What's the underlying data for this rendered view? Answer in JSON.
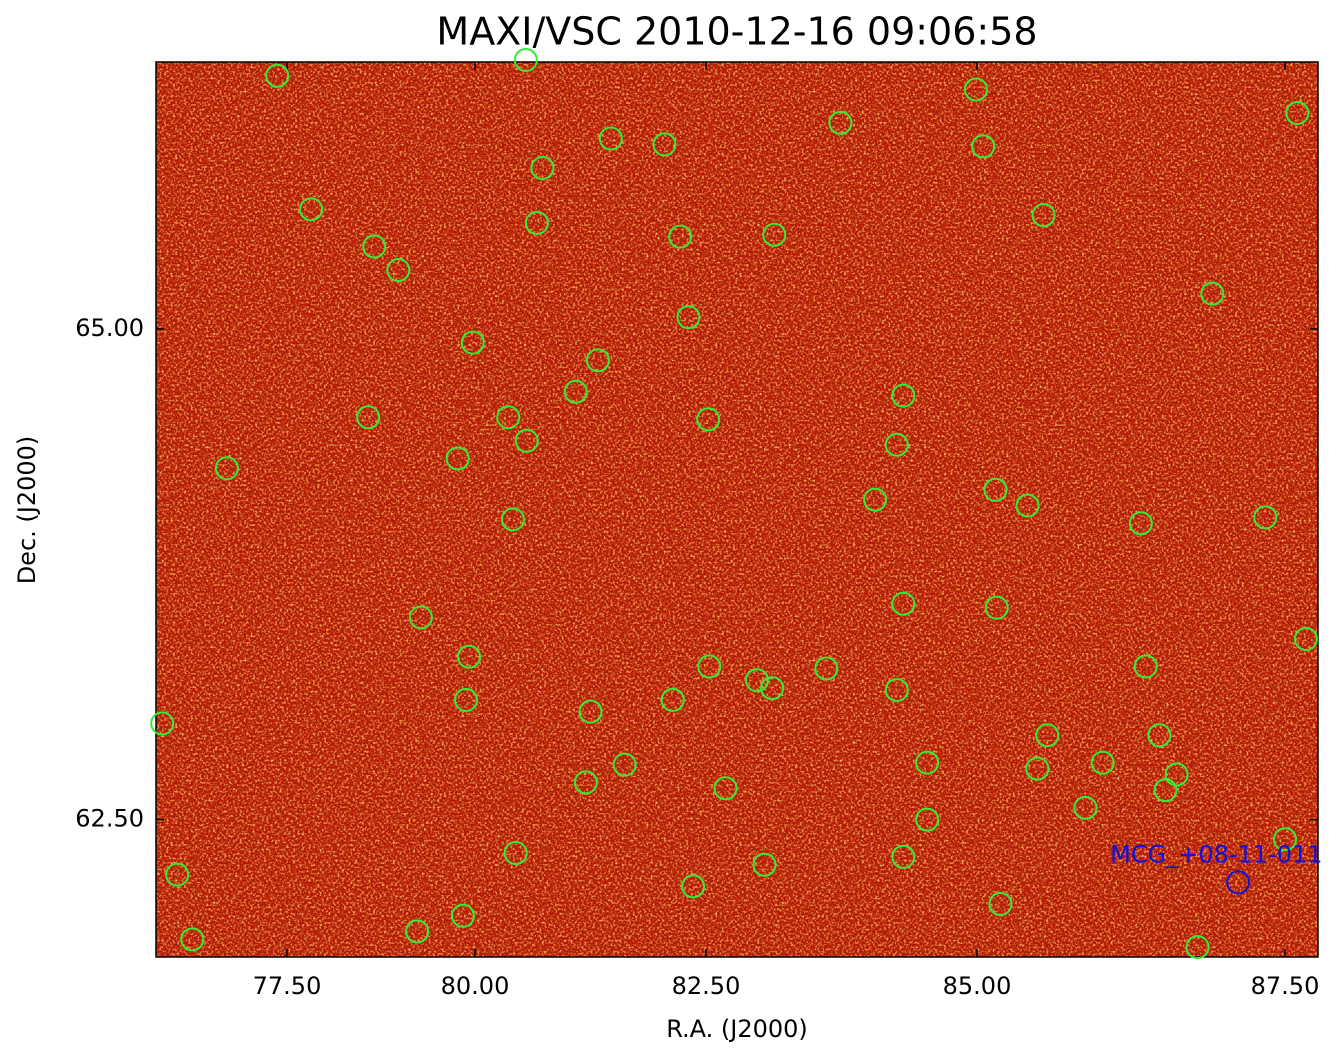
{
  "chart_data": {
    "type": "scatter",
    "title": "MAXI/VSC 2010-12-16 09:06:58",
    "x_label": "R.A. (J2000)",
    "y_label": "Dec. (J2000)",
    "xlim": [
      75.76,
      87.77
    ],
    "ylim": [
      61.8,
      66.36
    ],
    "xticks": [
      {
        "value": 77.5,
        "label": "77.50"
      },
      {
        "value": 80,
        "label": "80.00"
      },
      {
        "value": 82.5,
        "label": "82.50"
      },
      {
        "value": 85,
        "label": "85.00"
      },
      {
        "value": 87.5,
        "label": "87.50"
      }
    ],
    "yticks": [
      {
        "value": 65,
        "label": "65.00"
      },
      {
        "value": 62.5,
        "label": "62.50"
      }
    ],
    "points": {
      "color": "#33ee33",
      "x": [
        77.37,
        80.55,
        81.47,
        82.05,
        80.73,
        83.74,
        84.99,
        85.05,
        87.6,
        77.82,
        80.67,
        82.22,
        83.13,
        85.54,
        78.66,
        78.98,
        86.91,
        82.31,
        79.97,
        81.33,
        81.09,
        84.32,
        78.58,
        80.36,
        82.52,
        80.56,
        84.26,
        79.77,
        76.7,
        84.06,
        85.15,
        85.41,
        80.41,
        86.33,
        87.34,
        84.32,
        85.16,
        79.28,
        87.67,
        79.92,
        82.53,
        83.61,
        86.37,
        82.97,
        83.11,
        84.26,
        79.88,
        82.14,
        75.84,
        81.25,
        85.57,
        86.48,
        81.62,
        84.54,
        85.49,
        86.02,
        86.62,
        81.2,
        82.68,
        86.53,
        85.88,
        84.54,
        87.5,
        76.04,
        80.44,
        84.32,
        83.04,
        82.36,
        85.19,
        79.84,
        79.23,
        76.24,
        86.79
      ],
      "y": [
        66.29,
        66.37,
        65.97,
        65.94,
        65.82,
        66.05,
        66.22,
        65.93,
        66.1,
        65.61,
        65.54,
        65.47,
        65.48,
        65.58,
        65.42,
        65.3,
        65.18,
        65.06,
        64.93,
        64.84,
        64.68,
        64.66,
        64.55,
        64.55,
        64.54,
        64.43,
        64.41,
        64.34,
        64.29,
        64.13,
        64.18,
        64.1,
        64.03,
        64.01,
        64.04,
        63.6,
        63.58,
        63.53,
        63.42,
        63.33,
        63.28,
        63.27,
        63.28,
        63.21,
        63.17,
        63.16,
        63.11,
        63.11,
        62.99,
        63.05,
        62.93,
        62.93,
        62.78,
        62.79,
        62.76,
        62.79,
        62.73,
        62.69,
        62.66,
        62.65,
        62.56,
        62.5,
        62.4,
        62.22,
        62.33,
        62.31,
        62.27,
        62.16,
        62.07,
        62.01,
        61.93,
        61.89,
        61.85
      ]
    },
    "source": {
      "label": "MCG_+08-11-011",
      "x": 87.12,
      "y": 62.18,
      "color": "#1010dd"
    }
  }
}
